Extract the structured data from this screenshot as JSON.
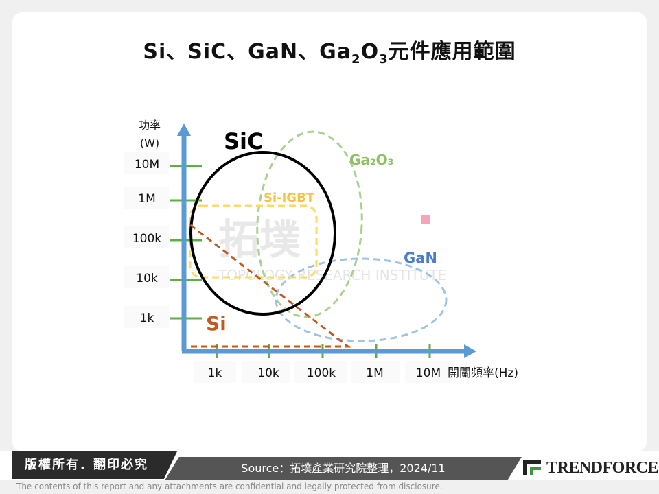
{
  "title": {
    "prefix": "Si、SiC、GaN、Ga",
    "sub1": "2",
    "mid": "O",
    "sub2": "3",
    "suffix": "元件應用範圍"
  },
  "y_axis": {
    "label_line1": "功率",
    "label_line2": "(W)",
    "ticks": [
      "10M",
      "1M",
      "100k",
      "10k",
      "1k"
    ]
  },
  "x_axis": {
    "label": "開關頻率(Hz)",
    "ticks": [
      "1k",
      "10k",
      "100k",
      "1M",
      "10M"
    ]
  },
  "regions": {
    "sic": {
      "label": "SiC",
      "color": "#000000"
    },
    "ga2o3": {
      "label": "Ga₂O₃",
      "color": "#8cc063"
    },
    "si_igbt": {
      "label": "Si-IGBT",
      "color": "#f5c242"
    },
    "gan": {
      "label": "GaN",
      "color": "#4a7ec8"
    },
    "si": {
      "label": "Si",
      "color": "#c05a20"
    }
  },
  "colors": {
    "axis": "#5b9bd5",
    "tick": "#5cae45"
  },
  "watermark": {
    "cn": "拓墣",
    "en": "TOPOLOGY RESEARCH INSTITUTE"
  },
  "footer": {
    "copyright": "版權所有．翻印必究",
    "source": "Source：拓墣產業研究院整理，2024/11",
    "logo": "TRENDFORCE",
    "disclaimer": "The contents of this report and any attachments are confidential and legally protected from disclosure."
  }
}
